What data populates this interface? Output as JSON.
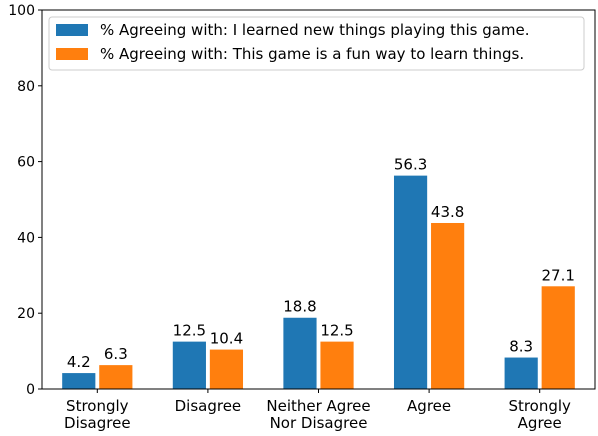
{
  "chart_data": {
    "type": "bar",
    "title": "",
    "xlabel": "",
    "ylabel": "",
    "ylim": [
      0,
      100
    ],
    "yticks": [
      0,
      20,
      40,
      60,
      80,
      100
    ],
    "grid": false,
    "legend_position": "top-left",
    "categories": [
      [
        "Strongly",
        "Disagree"
      ],
      [
        "Disagree"
      ],
      [
        "Neither Agree",
        "Nor Disagree"
      ],
      [
        "Agree"
      ],
      [
        "Strongly",
        "Agree"
      ]
    ],
    "series": [
      {
        "name": "% Agreeing with: I learned new things playing this game.",
        "color": "#1f77b4",
        "values": [
          4.2,
          12.5,
          18.8,
          56.3,
          8.3
        ],
        "labels": [
          "4.2",
          "12.5",
          "18.8",
          "56.3",
          "8.3"
        ]
      },
      {
        "name": "% Agreeing with: This game is a fun way to learn things.",
        "color": "#ff7f0e",
        "values": [
          6.3,
          10.4,
          12.5,
          43.8,
          27.1
        ],
        "labels": [
          "6.3",
          "10.4",
          "12.5",
          "43.8",
          "27.1"
        ]
      }
    ]
  }
}
